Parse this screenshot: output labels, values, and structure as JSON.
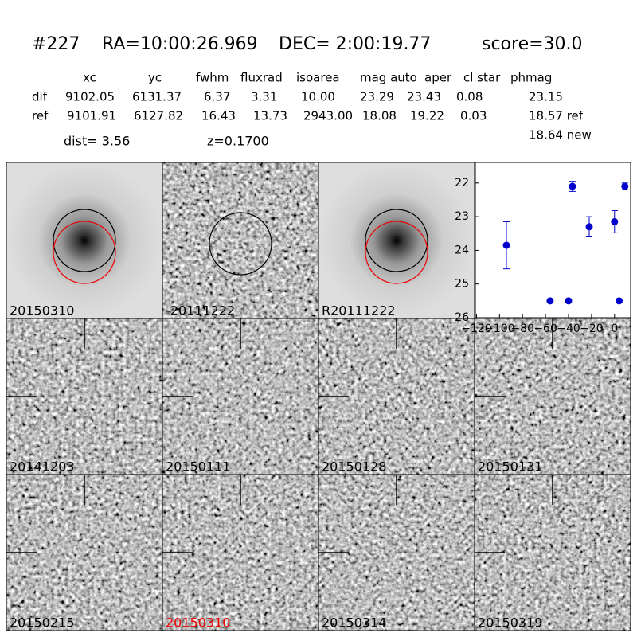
{
  "header": {
    "id": "#227",
    "ra": "RA=10:00:26.969",
    "dec": "DEC= 2:00:19.77",
    "score": "score=30.0"
  },
  "table": {
    "columns": [
      "xc",
      "yc",
      "fwhm",
      "fluxrad",
      "isoarea",
      "mag auto",
      "aper",
      "cl star",
      "phmag"
    ],
    "rows": [
      [
        "dif",
        "9102.05",
        "6131.37",
        "6.37",
        "3.31",
        "10.00",
        "23.29",
        "23.43",
        "0.08",
        "23.15"
      ],
      [
        "ref",
        "9101.91",
        "6127.82",
        "16.43",
        "13.73",
        "2943.00",
        "18.08",
        "19.22",
        "0.03",
        "18.57 ref"
      ]
    ],
    "extra": "18.64 new"
  },
  "dist": "dist=  3.56",
  "z": "z=0.1700",
  "panels": [
    "20150310",
    "-20111222",
    "R20111222",
    "20141203",
    "20150111",
    "20150128",
    "20150131",
    "20150215",
    "20150310",
    "20150314",
    "20150319"
  ],
  "chart_data": {
    "type": "scatter",
    "x": [
      -94,
      -56,
      -40,
      -36.6,
      -22,
      0,
      4,
      9
    ],
    "values": [
      23.85,
      25.5,
      25.5,
      22.1,
      23.3,
      23.15,
      25.5,
      22.1
    ],
    "errors": [
      0.7,
      0.05,
      0.05,
      0.15,
      0.3,
      0.33,
      0.05,
      0.1
    ],
    "color": "#0000cc",
    "xlim": [
      -121,
      14
    ],
    "ylim": [
      26,
      21.39
    ],
    "xticks": [
      {
        "value": -120,
        "label": "−120"
      },
      {
        "value": -100,
        "label": "−100"
      },
      {
        "value": -80,
        "label": "−80"
      },
      {
        "value": -60,
        "label": "−60"
      },
      {
        "value": -40,
        "label": "−40"
      },
      {
        "value": -20,
        "label": "−20"
      },
      0
    ],
    "yticks": [
      22,
      23,
      24,
      25,
      26
    ]
  }
}
